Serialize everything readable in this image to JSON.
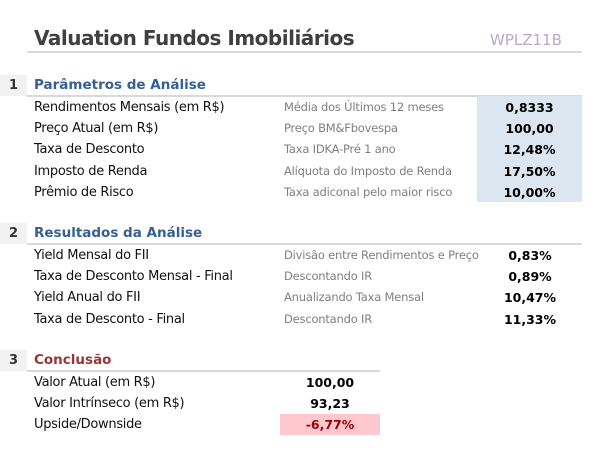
{
  "title": "Valuation Fundos Imobiliários",
  "ticker": "WPLZ11B",
  "colors": {
    "section_blue": "#366092",
    "section_red": "#953735",
    "input_bg": "#dce6f1",
    "negative_bg": "#ffc7ce",
    "negative_text": "#9c0006"
  },
  "sections": [
    {
      "number": "1",
      "title": "Parâmetros de Análise",
      "rows": [
        {
          "label": "Rendimentos Mensais (em R$)",
          "desc": "Média dos Últimos 12 meses",
          "value": "0,8333"
        },
        {
          "label": "Preço Atual (em R$)",
          "desc": "Preço BM&Fbovespa",
          "value": "100,00"
        },
        {
          "label": "Taxa de Desconto",
          "desc": "Taxa IDKA-Pré 1 ano",
          "value": "12,48%"
        },
        {
          "label": "Imposto de Renda",
          "desc": "Alíquota do Imposto de Renda",
          "value": "17,50%"
        },
        {
          "label": "Prêmio de Risco",
          "desc": "Taxa adiconal pelo maior risco",
          "value": "10,00%"
        }
      ]
    },
    {
      "number": "2",
      "title": "Resultados da Análise",
      "rows": [
        {
          "label": "Yield Mensal do FII",
          "desc": "Divisão entre Rendimentos e Preço",
          "value": "0,83%"
        },
        {
          "label": "Taxa de Desconto Mensal - Final",
          "desc": "Descontando IR",
          "value": "0,89%"
        },
        {
          "label": "Yield Anual do FII",
          "desc": "Anualizando Taxa Mensal",
          "value": "10,47%"
        },
        {
          "label": "Taxa de Desconto - Final",
          "desc": "Descontando IR",
          "value": "11,33%"
        }
      ]
    },
    {
      "number": "3",
      "title": "Conclusão",
      "rows": [
        {
          "label": "Valor Atual (em R$)",
          "value": "100,00"
        },
        {
          "label": "Valor Intrínseco (em R$)",
          "value": "93,23"
        },
        {
          "label": "Upside/Downside",
          "value": "-6,77%"
        }
      ]
    }
  ]
}
